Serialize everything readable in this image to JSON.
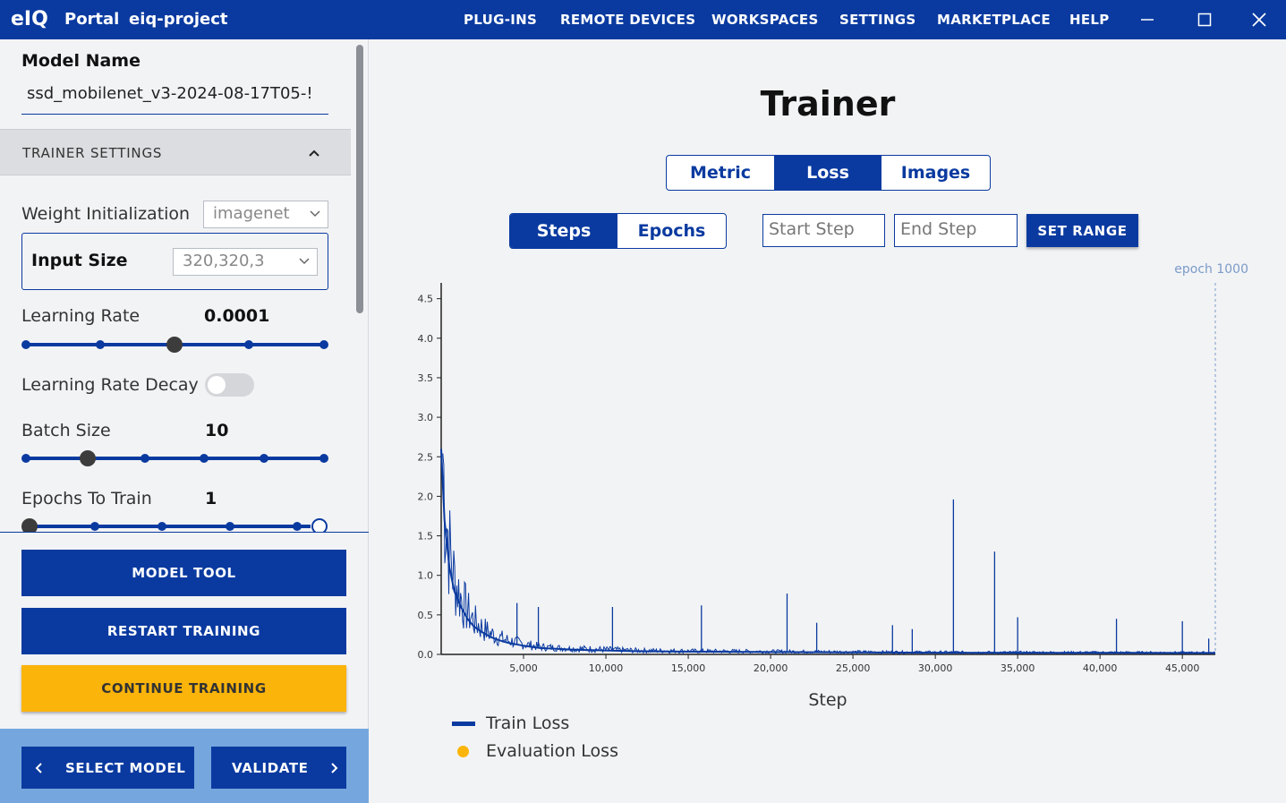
{
  "titlebar": {
    "logo": "eIQ",
    "app": "Portal",
    "project": "eiq-project",
    "nav": [
      "PLUG-INS",
      "REMOTE DEVICES",
      "WORKSPACES",
      "SETTINGS",
      "MARKETPLACE",
      "HELP"
    ]
  },
  "sidebar": {
    "model_name_label": "Model Name",
    "model_name_value": "ssd_mobilenet_v3-2024-08-17T05-!",
    "section_title": "TRAINER SETTINGS",
    "weight_init_label": "Weight Initialization",
    "weight_init_value": "imagenet",
    "input_size_label": "Input Size",
    "input_size_value": "320,320,3",
    "learning_rate_label": "Learning Rate",
    "learning_rate_value": "0.0001",
    "lr_decay_label": "Learning Rate Decay",
    "batch_size_label": "Batch Size",
    "batch_size_value": "10",
    "epochs_label": "Epochs To Train",
    "epochs_value": "1",
    "model_tool": "MODEL TOOL",
    "restart_training": "RESTART TRAINING",
    "continue_training": "CONTINUE TRAINING",
    "select_model": "SELECT MODEL",
    "validate": "VALIDATE"
  },
  "main": {
    "title": "Trainer",
    "tabs": [
      "Metric",
      "Loss",
      "Images"
    ],
    "active_tab": "Loss",
    "mode": [
      "Steps",
      "Epochs"
    ],
    "active_mode": "Steps",
    "start_placeholder": "Start Step",
    "end_placeholder": "End Step",
    "set_range": "SET RANGE",
    "epoch_marker": "epoch 1000",
    "legend_train": "Train Loss",
    "legend_eval": "Evaluation Loss"
  },
  "colors": {
    "primary": "#0a3aa0",
    "accent": "#fbb40a",
    "bottom_bar": "#75a7de"
  },
  "chart_data": {
    "type": "line",
    "xlabel": "Step",
    "ylabel": "",
    "xlim": [
      0,
      47000
    ],
    "ylim": [
      0,
      4.7
    ],
    "x_ticks": [
      5000,
      10000,
      15000,
      20000,
      25000,
      30000,
      35000,
      40000,
      45000
    ],
    "x_tick_labels": [
      "5,000",
      "10,000",
      "15,000",
      "20,000",
      "25,000",
      "30,000",
      "35,000",
      "40,000",
      "45,000"
    ],
    "y_ticks": [
      0,
      0.5,
      1,
      1.5,
      2,
      2.5,
      3,
      3.5,
      4,
      4.5
    ],
    "y_tick_labels": [
      "0.0",
      "0.5",
      "1.0",
      "1.5",
      "2.0",
      "2.5",
      "3.0",
      "3.5",
      "4.0",
      "4.5"
    ],
    "epoch_marker_x": 47000,
    "series": [
      {
        "name": "Train Loss",
        "x": [
          0,
          200,
          500,
          800,
          1200,
          1600,
          2000,
          2500,
          3000,
          3500,
          4000,
          5000,
          6000,
          7000,
          8000,
          10000,
          12000,
          15000,
          20000,
          25000,
          30000,
          35000,
          40000,
          45000,
          47000
        ],
        "y": [
          2.6,
          1.7,
          1.1,
          0.8,
          0.6,
          0.45,
          0.35,
          0.28,
          0.22,
          0.18,
          0.15,
          0.11,
          0.08,
          0.07,
          0.06,
          0.05,
          0.04,
          0.035,
          0.03,
          0.025,
          0.022,
          0.02,
          0.02,
          0.018,
          0.018
        ],
        "spikes": [
          [
            4600,
            0.65
          ],
          [
            5900,
            0.6
          ],
          [
            10400,
            0.6
          ],
          [
            15800,
            0.62
          ],
          [
            21000,
            0.77
          ],
          [
            22800,
            0.4
          ],
          [
            27400,
            0.37
          ],
          [
            28600,
            0.32
          ],
          [
            31100,
            1.96
          ],
          [
            33600,
            1.3
          ],
          [
            35000,
            0.47
          ],
          [
            41000,
            0.45
          ],
          [
            45000,
            0.42
          ],
          [
            46600,
            0.2
          ]
        ]
      },
      {
        "name": "Evaluation Loss",
        "x": [],
        "y": []
      }
    ]
  }
}
